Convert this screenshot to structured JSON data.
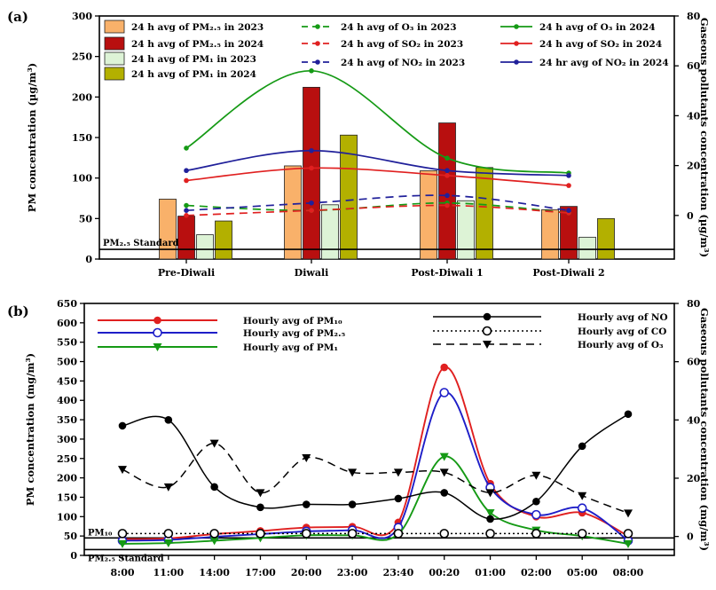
{
  "chart_data": [
    {
      "panel": "(a)",
      "type": "bar+line",
      "categories": [
        "Pre-Diwali",
        "Diwali",
        "Post-Diwali 1",
        "Post-Diwali 2"
      ],
      "ylabel": "PM concentration (µg/m³)",
      "y2label": "Gaseous pollutants concentration (µg/m³)",
      "ylim": [
        0,
        300
      ],
      "yticks": [
        0,
        50,
        100,
        150,
        200,
        250,
        300
      ],
      "y2lim": [
        -17.5,
        80
      ],
      "y2ticks": [
        0,
        20,
        40,
        60,
        80
      ],
      "standard_value": 12,
      "standard_label": "PM₂.₅ Standard",
      "bar_series": [
        {
          "name": "24 h avg of PM₂.₅ in 2023",
          "color": "#f9b16a",
          "values": [
            74,
            115,
            109,
            61
          ]
        },
        {
          "name": "24 h avg of PM₂.₅ in 2024",
          "color": "#b80f0f",
          "values": [
            53,
            212,
            168,
            65
          ]
        },
        {
          "name": "24 h avg of PM₁ in 2023",
          "color": "#ddf3d6",
          "values": [
            30,
            67,
            72,
            27
          ]
        },
        {
          "name": "24 h avg of PM₁ in 2024",
          "color": "#b3b000",
          "values": [
            47,
            153,
            113,
            50
          ]
        }
      ],
      "line_series": [
        {
          "name": "24 h avg of O₃ in 2023",
          "color": "#159a15",
          "dashed": true,
          "values": [
            4,
            2,
            5,
            1
          ]
        },
        {
          "name": "24 h avg of O₃ in 2024",
          "color": "#159a15",
          "dashed": false,
          "values": [
            27,
            58,
            23,
            17
          ]
        },
        {
          "name": "24 h avg of SO₂ in 2023",
          "color": "#e02020",
          "dashed": true,
          "values": [
            0,
            2,
            4,
            1
          ]
        },
        {
          "name": "24 h avg of SO₂ in 2024",
          "color": "#e02020",
          "dashed": false,
          "values": [
            14,
            19,
            16,
            12
          ]
        },
        {
          "name": "24 h avg of NO₂ in 2023",
          "color": "#20209a",
          "dashed": true,
          "values": [
            2,
            5,
            8,
            2
          ]
        },
        {
          "name": "24 hr avg of NO₂ in 2024",
          "color": "#20209a",
          "dashed": false,
          "values": [
            18,
            26,
            18,
            16
          ]
        }
      ]
    },
    {
      "panel": "(b)",
      "type": "line",
      "x": [
        "8:00",
        "11:00",
        "14:00",
        "17:00",
        "20:00",
        "23:00",
        "23:40",
        "00:20",
        "01:00",
        "02:00",
        "05:00",
        "08:00"
      ],
      "ylabel": "PM concentration (mg/m³)",
      "y2label": "Gaseous pollutants concentration (mg/m³)",
      "ylim": [
        0,
        650
      ],
      "yticks": [
        0,
        50,
        100,
        150,
        200,
        250,
        300,
        350,
        400,
        450,
        500,
        550,
        600,
        650
      ],
      "y2lim": [
        -6.5,
        80
      ],
      "y2ticks": [
        0,
        20,
        40,
        60,
        80
      ],
      "pm10_standard_value": 45,
      "pm10_standard_label": "PM₁₀",
      "pm25_standard_value": 15,
      "pm25_standard_label": "PM₂.₅ Standard",
      "series": [
        {
          "name": "Hourly avg of PM₁₀",
          "axis": "left",
          "color": "#e02020",
          "marker": "filled-circle",
          "values": [
            42,
            44,
            55,
            63,
            72,
            74,
            85,
            485,
            185,
            100,
            110,
            50
          ]
        },
        {
          "name": "Hourly avg of PM₂.₅",
          "axis": "left",
          "color": "#1e1ec8",
          "marker": "open-circle",
          "values": [
            38,
            40,
            48,
            55,
            62,
            65,
            72,
            420,
            175,
            105,
            122,
            38
          ]
        },
        {
          "name": "Hourly avg of  PM₁",
          "axis": "left",
          "color": "#159a15",
          "marker": "filled-triangle",
          "values": [
            30,
            32,
            38,
            45,
            52,
            52,
            55,
            255,
            110,
            65,
            50,
            30
          ]
        },
        {
          "name": "Hourly avg of NO",
          "axis": "right",
          "color": "#000000",
          "marker": "filled-circle",
          "style": "solid",
          "values": [
            38,
            40,
            17,
            10,
            11,
            11,
            13,
            15,
            6,
            12,
            31,
            42
          ]
        },
        {
          "name": "Hourly avg of CO",
          "axis": "right",
          "color": "#000000",
          "marker": "open-circle",
          "style": "dotted",
          "values": [
            1,
            1,
            1,
            1,
            1,
            1,
            1,
            1,
            1,
            1,
            1,
            1
          ]
        },
        {
          "name": "Hourly avg of O₃",
          "axis": "right",
          "color": "#000000",
          "marker": "filled-triangle",
          "style": "dashed",
          "values": [
            23,
            17,
            32,
            15,
            27,
            22,
            22,
            22,
            15,
            21,
            14,
            8
          ]
        }
      ]
    }
  ]
}
